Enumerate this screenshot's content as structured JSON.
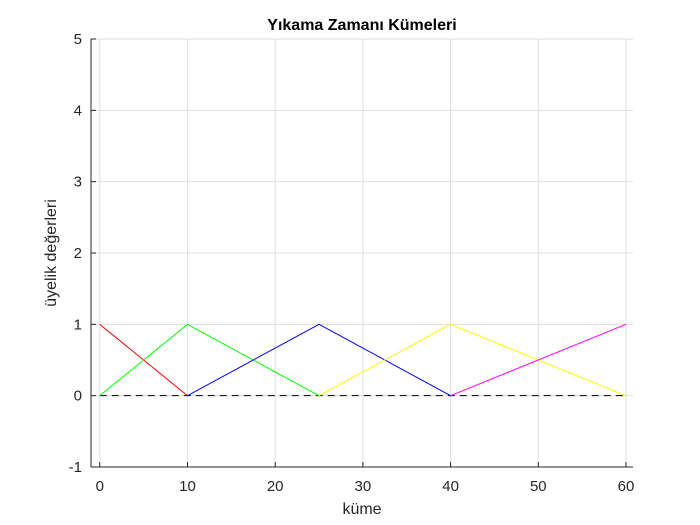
{
  "chart_data": {
    "type": "line",
    "title": "Yıkama Zamanı Kümeleri",
    "xlabel": "küme",
    "ylabel": "üyelik değerleri",
    "xlim": [
      -1,
      60.8
    ],
    "ylim": [
      -1,
      5
    ],
    "xticks": [
      0,
      10,
      20,
      30,
      40,
      50,
      60
    ],
    "yticks": [
      -1,
      0,
      1,
      2,
      3,
      4,
      5
    ],
    "grid": true,
    "series": [
      {
        "color": "#ff0000",
        "x": [
          0,
          10
        ],
        "y": [
          1,
          0
        ]
      },
      {
        "color": "#00ff00",
        "x": [
          0,
          10,
          25
        ],
        "y": [
          0,
          1,
          0
        ]
      },
      {
        "color": "#0000ff",
        "x": [
          10,
          25,
          40
        ],
        "y": [
          0,
          1,
          0
        ]
      },
      {
        "color": "#ffff00",
        "x": [
          25,
          40,
          60
        ],
        "y": [
          0,
          1,
          0
        ]
      },
      {
        "color": "#ff00ff",
        "x": [
          40,
          60
        ],
        "y": [
          0,
          1
        ]
      }
    ],
    "baseline": {
      "y": 0,
      "x": [
        0,
        60
      ],
      "style": "dashed",
      "color": "#000000"
    }
  }
}
